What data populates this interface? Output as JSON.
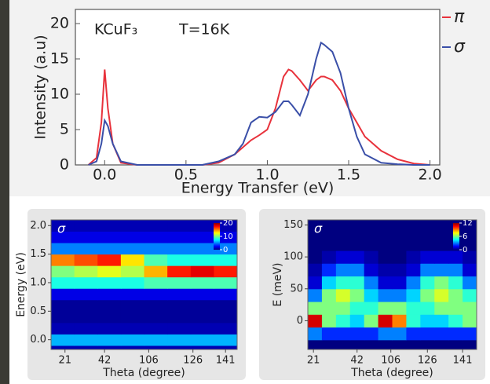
{
  "chart_data": [
    {
      "type": "line",
      "annotations": [
        "KCuF₃",
        "T=16K"
      ],
      "y_label": "Intensity (a.u)",
      "x_label": "Energy Transfer (eV)",
      "x": [
        -0.1,
        -0.05,
        -0.02,
        0,
        0.02,
        0.05,
        0.1,
        0.2,
        0.6,
        0.7,
        0.8,
        0.85,
        0.9,
        0.95,
        1.0,
        1.05,
        1.1,
        1.13,
        1.15,
        1.2,
        1.25,
        1.3,
        1.33,
        1.35,
        1.4,
        1.45,
        1.5,
        1.55,
        1.6,
        1.7,
        1.8,
        1.9,
        2.0
      ],
      "series": [
        {
          "name": "π",
          "color": "#e8323c",
          "values": [
            0,
            1,
            6,
            13.5,
            8,
            3,
            0.3,
            0,
            0,
            0.3,
            1.5,
            2.5,
            3.5,
            4.2,
            5,
            8,
            12.5,
            13.5,
            13.3,
            12,
            10.5,
            12,
            12.5,
            12.5,
            12,
            10.5,
            8,
            6,
            4,
            2,
            0.8,
            0.2,
            0
          ]
        },
        {
          "name": "σ",
          "color": "#3a4fa8",
          "values": [
            0,
            0.5,
            3,
            6.3,
            5.5,
            3,
            0.5,
            0,
            0,
            0.5,
            1.5,
            3,
            6,
            6.8,
            6.7,
            7.5,
            9,
            9,
            8.5,
            7,
            10,
            15,
            17.3,
            17,
            16,
            13,
            8,
            4,
            1.5,
            0.3,
            0.1,
            0,
            0
          ]
        }
      ],
      "xlim": [
        -0.18,
        2.06
      ],
      "xticks": [
        {
          "value": 0,
          "label": "0.0"
        },
        0.5,
        {
          "value": 1,
          "label": "1.0"
        },
        1.5,
        {
          "value": 2,
          "label": "2.0"
        }
      ],
      "ylim": [
        0,
        22
      ],
      "yticks": [
        0,
        5,
        10,
        15,
        20
      ]
    },
    {
      "type": "heatmap",
      "title": "σ",
      "y_label": "Energy (eV)",
      "x_label": "Theta (degree)",
      "xlim": [
        0,
        8
      ],
      "xticks": [
        {
          "value": 0.6,
          "label": "21"
        },
        {
          "value": 2.3,
          "label": "42"
        },
        {
          "value": 4.2,
          "label": "106"
        },
        {
          "value": 6.1,
          "label": "126"
        },
        {
          "value": 7.5,
          "label": "141"
        }
      ],
      "ylim": [
        -0.17,
        2.1
      ],
      "yticks": [
        {
          "value": 0,
          "label": "0.0"
        },
        0.5,
        {
          "value": 1,
          "label": "1.0"
        },
        1.5,
        {
          "value": 2,
          "label": "2.0"
        }
      ],
      "y": [
        -0.2,
        0,
        0.2,
        0.4,
        0.6,
        0.8,
        1.0,
        1.2,
        1.4,
        1.6,
        1.8,
        2.0
      ],
      "z": [
        [
          1,
          1,
          1,
          1,
          1,
          1,
          1,
          1
        ],
        [
          6,
          6,
          6,
          6,
          6,
          6,
          6,
          6
        ],
        [
          1,
          1,
          1,
          1,
          1,
          1,
          1,
          1
        ],
        [
          0.5,
          0.5,
          0.5,
          0.5,
          0.5,
          0.5,
          0.5,
          0.5
        ],
        [
          0.5,
          0.5,
          0.5,
          0.5,
          0.5,
          0.5,
          0.5,
          0.5
        ],
        [
          2,
          2,
          2,
          2,
          2,
          2,
          2,
          2
        ],
        [
          8,
          8,
          8,
          8,
          9,
          9,
          9,
          9
        ],
        [
          10,
          11,
          12,
          11,
          14,
          17,
          18,
          17
        ],
        [
          15,
          16,
          17,
          13,
          9,
          8,
          8,
          8
        ],
        [
          5,
          5,
          5,
          5,
          5,
          5,
          5,
          5
        ],
        [
          2,
          2,
          2,
          2,
          2,
          2,
          2,
          2
        ],
        [
          1,
          1,
          1,
          1,
          1,
          1,
          1,
          1
        ]
      ],
      "zlim": [
        0,
        20
      ],
      "zticks": [
        0,
        10,
        20
      ]
    },
    {
      "type": "heatmap",
      "title": "σ",
      "y_label": "E (meV)",
      "x_label": "Theta (degree)",
      "xlim": [
        0,
        12
      ],
      "xticks": [
        {
          "value": 0.4,
          "label": "21"
        },
        {
          "value": 3.5,
          "label": "42"
        },
        {
          "value": 5.9,
          "label": "106"
        },
        {
          "value": 8.5,
          "label": "126"
        },
        {
          "value": 11,
          "label": "141"
        }
      ],
      "ylim": [
        -45,
        158
      ],
      "yticks": [
        0,
        50,
        100,
        150
      ],
      "y": [
        -20,
        0,
        20,
        40,
        60,
        80,
        100,
        120,
        140
      ],
      "z": [
        [
          3,
          2,
          2,
          2,
          2,
          3,
          3,
          2,
          2,
          2,
          2,
          2
        ],
        [
          11,
          6,
          5,
          4,
          6,
          11,
          9,
          5,
          4,
          4,
          5,
          6
        ],
        [
          6,
          6,
          6,
          5,
          5,
          6,
          6,
          5,
          5,
          6,
          6,
          6
        ],
        [
          3,
          6,
          7,
          6,
          4,
          3,
          3,
          4,
          6,
          7,
          6,
          5
        ],
        [
          1,
          4,
          5,
          5,
          3,
          1,
          1,
          3,
          5,
          6,
          5,
          3
        ],
        [
          0.5,
          2,
          3,
          3,
          1,
          0.5,
          0.5,
          1,
          3,
          3,
          3,
          1
        ],
        [
          0,
          0.5,
          1,
          1,
          0.5,
          0,
          0,
          0.5,
          1,
          1,
          1,
          0.5
        ],
        [
          0,
          0,
          0,
          0,
          0,
          0,
          0,
          0,
          0,
          0,
          0,
          0
        ],
        [
          0,
          0,
          0,
          0,
          0,
          0,
          0,
          0,
          0,
          0,
          0,
          0
        ]
      ],
      "zlim": [
        0,
        12
      ],
      "zticks": [
        0,
        6,
        12
      ]
    }
  ]
}
